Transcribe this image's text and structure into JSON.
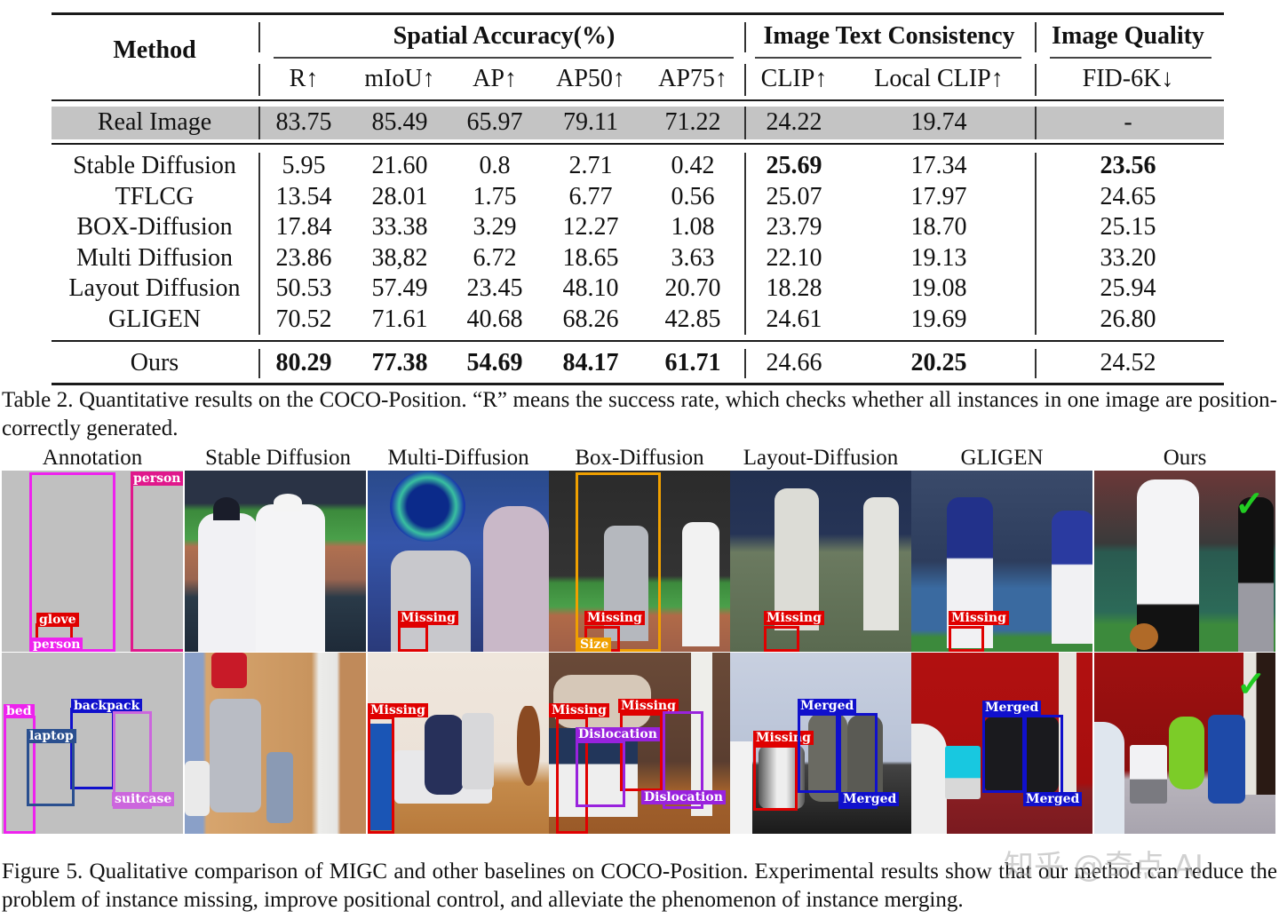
{
  "table": {
    "group_headers": {
      "method": "Method",
      "spatial": "Spatial Accuracy(%)",
      "itc": "Image Text Consistency",
      "quality": "Image Quality"
    },
    "columns": [
      "R↑",
      "mIoU↑",
      "AP↑",
      "AP50↑",
      "AP75↑",
      "CLIP↑",
      "Local CLIP↑",
      "FID-6K↓"
    ],
    "real_image": {
      "method": "Real Image",
      "values": [
        "83.75",
        "85.49",
        "65.97",
        "79.11",
        "71.22",
        "24.22",
        "19.74",
        "-"
      ]
    },
    "rows": [
      {
        "method": "Stable Diffusion",
        "values": [
          "5.95",
          "21.60",
          "0.8",
          "2.71",
          "0.42",
          "25.69",
          "17.34",
          "23.56"
        ],
        "bold": [
          5,
          7
        ]
      },
      {
        "method": "TFLCG",
        "values": [
          "13.54",
          "28.01",
          "1.75",
          "6.77",
          "0.56",
          "25.07",
          "17.97",
          "24.65"
        ],
        "bold": []
      },
      {
        "method": "BOX-Diffusion",
        "values": [
          "17.84",
          "33.38",
          "3.29",
          "12.27",
          "1.08",
          "23.79",
          "18.70",
          "25.15"
        ],
        "bold": []
      },
      {
        "method": "Multi Diffusion",
        "values": [
          "23.86",
          "38,82",
          "6.72",
          "18.65",
          "3.63",
          "22.10",
          "19.13",
          "33.20"
        ],
        "bold": []
      },
      {
        "method": "Layout Diffusion",
        "values": [
          "50.53",
          "57.49",
          "23.45",
          "48.10",
          "20.70",
          "18.28",
          "19.08",
          "25.94"
        ],
        "bold": []
      },
      {
        "method": "GLIGEN",
        "values": [
          "70.52",
          "71.61",
          "40.68",
          "68.26",
          "42.85",
          "24.61",
          "19.69",
          "26.80"
        ],
        "bold": []
      }
    ],
    "ours": {
      "method": "Ours",
      "values": [
        "80.29",
        "77.38",
        "54.69",
        "84.17",
        "61.71",
        "24.66",
        "20.25",
        "24.52"
      ],
      "bold": [
        0,
        1,
        2,
        3,
        4,
        6
      ]
    },
    "caption": "Table 2.  Quantitative results on the COCO-Position.  “R” means the success rate, which checks whether all instances in one image are position-correctly generated."
  },
  "figure": {
    "column_headers": [
      "Annotation",
      "Stable Diffusion",
      "Multi-Diffusion",
      "Box-Diffusion",
      "Layout-Diffusion",
      "GLIGEN",
      "Ours"
    ],
    "row1_labels": {
      "annotation": [
        "person",
        "glove",
        "person"
      ],
      "multi_diffusion": "Missing",
      "box_diffusion": [
        "Missing",
        "Size"
      ],
      "layout_diffusion": "Missing",
      "gligen": "Missing",
      "ours": "✓"
    },
    "row2_labels": {
      "annotation": [
        "bed",
        "backpack",
        "laptop",
        "suitcase"
      ],
      "multi_diffusion": "Missing",
      "box_diffusion": [
        "Missing",
        "Missing",
        "Dislocation",
        "Dislocation"
      ],
      "layout_diffusion": [
        "Merged",
        "Missing",
        "Merged"
      ],
      "gligen": [
        "Merged",
        "Merged"
      ],
      "ours": "✓"
    },
    "caption": "Figure 5. Qualitative comparison of MIGC and other baselines on COCO-Position. Experimental results show that our method can reduce the problem of instance missing, improve positional control, and alleviate the phenomenon of instance merging.",
    "watermark": "知乎 @奇点 AI"
  },
  "colors": {
    "band_gray": "#c4c4c4",
    "magenta": "#ee22ee",
    "pink": "#e0188c",
    "red": "#e00000",
    "blue": "#1010cc",
    "steel_blue": "#2a4f8f",
    "orchid": "#cc66dd",
    "purple": "#9922dd",
    "orange": "#f0a000",
    "green_check": "#22cc22"
  }
}
